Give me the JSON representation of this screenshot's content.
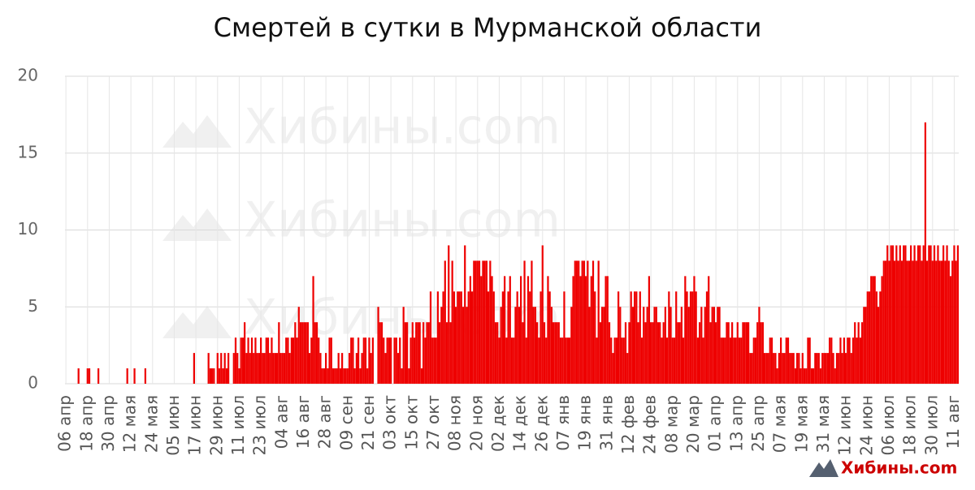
{
  "chart_data": {
    "type": "bar",
    "title": "Смертей в сутки в Мурманской области",
    "watermark": "Хибины.com",
    "color": "#ee0000",
    "grid": true,
    "ylim": [
      0,
      20
    ],
    "yticks": [
      0,
      5,
      10,
      15,
      20
    ],
    "categories": [
      "06 апр",
      null,
      null,
      null,
      null,
      null,
      null,
      null,
      null,
      null,
      null,
      null,
      "18 апр",
      null,
      null,
      null,
      null,
      null,
      null,
      null,
      null,
      null,
      null,
      null,
      "30 апр",
      null,
      null,
      null,
      null,
      null,
      null,
      null,
      null,
      null,
      null,
      null,
      "12 мая",
      null,
      null,
      null,
      null,
      null,
      null,
      null,
      null,
      null,
      null,
      null,
      "24 мая",
      null,
      null,
      null,
      null,
      null,
      null,
      null,
      null,
      null,
      null,
      null,
      "05 июн",
      null,
      null,
      null,
      null,
      null,
      null,
      null,
      null,
      null,
      null,
      null,
      "17 июн",
      null,
      null,
      null,
      null,
      null,
      null,
      null,
      null,
      null,
      null,
      null,
      "29 июн",
      null,
      null,
      null,
      null,
      null,
      null,
      null,
      null,
      null,
      null,
      null,
      "11 июл",
      null,
      null,
      null,
      null,
      null,
      null,
      null,
      null,
      null,
      null,
      null,
      "23 июл",
      null,
      null,
      null,
      null,
      null,
      null,
      null,
      null,
      null,
      null,
      null,
      "04 авг",
      null,
      null,
      null,
      null,
      null,
      null,
      null,
      null,
      null,
      null,
      null,
      "16 авг",
      null,
      null,
      null,
      null,
      null,
      null,
      null,
      null,
      null,
      null,
      null,
      "28 авг",
      null,
      null,
      null,
      null,
      null,
      null,
      null,
      null,
      null,
      null,
      null,
      "09 сен",
      null,
      null,
      null,
      null,
      null,
      null,
      null,
      null,
      null,
      null,
      null,
      "21 сен",
      null,
      null,
      null,
      null,
      null,
      null,
      null,
      null,
      null,
      null,
      null,
      "03 окт",
      null,
      null,
      null,
      null,
      null,
      null,
      null,
      null,
      null,
      null,
      null,
      "15 окт",
      null,
      null,
      null,
      null,
      null,
      null,
      null,
      null,
      null,
      null,
      null,
      "27 окт",
      null,
      null,
      null,
      null,
      null,
      null,
      null,
      null,
      null,
      null,
      null,
      "08 ноя",
      null,
      null,
      null,
      null,
      null,
      null,
      null,
      null,
      null,
      null,
      null,
      "20 ноя",
      null,
      null,
      null,
      null,
      null,
      null,
      null,
      null,
      null,
      null,
      null,
      "02 дек",
      null,
      null,
      null,
      null,
      null,
      null,
      null,
      null,
      null,
      null,
      null,
      "14 дек",
      null,
      null,
      null,
      null,
      null,
      null,
      null,
      null,
      null,
      null,
      null,
      "26 дек",
      null,
      null,
      null,
      null,
      null,
      null,
      null,
      null,
      null,
      null,
      null,
      "07 янв",
      null,
      null,
      null,
      null,
      null,
      null,
      null,
      null,
      null,
      null,
      null,
      "19 янв",
      null,
      null,
      null,
      null,
      null,
      null,
      null,
      null,
      null,
      null,
      null,
      "31 янв",
      null,
      null,
      null,
      null,
      null,
      null,
      null,
      null,
      null,
      null,
      null,
      "12 фев",
      null,
      null,
      null,
      null,
      null,
      null,
      null,
      null,
      null,
      null,
      null,
      "24 фев",
      null,
      null,
      null,
      null,
      null,
      null,
      null,
      null,
      null,
      null,
      null,
      "08 мар",
      null,
      null,
      null,
      null,
      null,
      null,
      null,
      null,
      null,
      null,
      null,
      "20 мар",
      null,
      null,
      null,
      null,
      null,
      null,
      null,
      null,
      null,
      null,
      null,
      "01 апр",
      null,
      null,
      null,
      null,
      null,
      null,
      null,
      null,
      null,
      null,
      null,
      "13 апр",
      null,
      null,
      null,
      null,
      null,
      null,
      null,
      null,
      null,
      null,
      null,
      "25 апр",
      null,
      null,
      null,
      null,
      null,
      null,
      null,
      null,
      null,
      null,
      null,
      "07 мая",
      null,
      null,
      null,
      null,
      null,
      null,
      null,
      null,
      null,
      null,
      null,
      "19 мая",
      null,
      null,
      null,
      null,
      null,
      null,
      null,
      null,
      null,
      null,
      null,
      "31 мая",
      null,
      null,
      null,
      null,
      null,
      null,
      null,
      null,
      null,
      null,
      null,
      "12 июн",
      null,
      null,
      null,
      null,
      null,
      null,
      null,
      null,
      null,
      null,
      null,
      "24 июн",
      null,
      null,
      null,
      null,
      null,
      null,
      null,
      null,
      null,
      null,
      null,
      "06 июл",
      null,
      null,
      null,
      null,
      null,
      null,
      null,
      null,
      null,
      null,
      null,
      "18 июл",
      null,
      null,
      null,
      null,
      null,
      null,
      null,
      null,
      null,
      null,
      null,
      "30 июл",
      null,
      null,
      null,
      null,
      null,
      null,
      null,
      null,
      null,
      null,
      null,
      "11 авг",
      null,
      null
    ],
    "values": [
      0,
      0,
      0,
      0,
      0,
      0,
      0,
      1,
      0,
      0,
      0,
      0,
      1,
      1,
      0,
      0,
      0,
      0,
      1,
      0,
      0,
      0,
      0,
      0,
      0,
      0,
      0,
      0,
      0,
      0,
      0,
      0,
      0,
      0,
      1,
      0,
      0,
      0,
      1,
      0,
      0,
      0,
      0,
      0,
      1,
      0,
      0,
      0,
      0,
      0,
      0,
      0,
      0,
      0,
      0,
      0,
      0,
      0,
      0,
      0,
      0,
      0,
      0,
      0,
      0,
      0,
      0,
      0,
      0,
      0,
      0,
      2,
      0,
      0,
      0,
      0,
      0,
      0,
      0,
      2,
      1,
      1,
      1,
      0,
      2,
      1,
      2,
      1,
      2,
      1,
      2,
      0,
      0,
      2,
      3,
      2,
      1,
      3,
      3,
      4,
      2,
      3,
      2,
      3,
      2,
      3,
      2,
      2,
      3,
      2,
      2,
      3,
      3,
      2,
      3,
      2,
      2,
      2,
      4,
      2,
      2,
      2,
      3,
      3,
      2,
      3,
      3,
      4,
      3,
      5,
      4,
      4,
      4,
      4,
      4,
      2,
      3,
      7,
      4,
      4,
      3,
      2,
      1,
      1,
      2,
      1,
      3,
      3,
      1,
      1,
      1,
      2,
      1,
      2,
      1,
      1,
      1,
      2,
      3,
      3,
      1,
      2,
      3,
      1,
      2,
      3,
      3,
      1,
      3,
      2,
      3,
      0,
      0,
      5,
      4,
      4,
      3,
      2,
      3,
      3,
      3,
      0,
      3,
      3,
      2,
      3,
      1,
      5,
      4,
      4,
      1,
      3,
      4,
      3,
      4,
      4,
      4,
      1,
      4,
      3,
      4,
      4,
      6,
      3,
      3,
      3,
      6,
      4,
      5,
      6,
      8,
      4,
      9,
      4,
      8,
      6,
      5,
      6,
      6,
      6,
      5,
      9,
      5,
      6,
      7,
      6,
      8,
      8,
      8,
      8,
      7,
      8,
      8,
      8,
      6,
      8,
      7,
      6,
      4,
      4,
      3,
      5,
      6,
      7,
      3,
      6,
      7,
      3,
      3,
      5,
      6,
      5,
      7,
      4,
      8,
      3,
      7,
      6,
      8,
      5,
      5,
      4,
      3,
      6,
      9,
      4,
      3,
      7,
      6,
      5,
      4,
      4,
      4,
      4,
      3,
      3,
      6,
      3,
      3,
      3,
      5,
      7,
      8,
      8,
      8,
      7,
      8,
      8,
      7,
      8,
      5,
      7,
      8,
      6,
      3,
      8,
      4,
      5,
      5,
      7,
      7,
      4,
      3,
      2,
      3,
      3,
      6,
      5,
      3,
      3,
      4,
      2,
      4,
      6,
      5,
      6,
      6,
      4,
      6,
      3,
      5,
      4,
      5,
      7,
      4,
      4,
      5,
      5,
      4,
      4,
      3,
      4,
      5,
      3,
      6,
      5,
      3,
      3,
      6,
      4,
      4,
      5,
      3,
      7,
      6,
      5,
      6,
      6,
      7,
      6,
      3,
      4,
      5,
      3,
      5,
      6,
      7,
      4,
      5,
      5,
      4,
      5,
      5,
      3,
      3,
      3,
      4,
      4,
      3,
      4,
      3,
      3,
      4,
      3,
      3,
      4,
      4,
      4,
      4,
      2,
      2,
      3,
      3,
      4,
      5,
      4,
      4,
      2,
      2,
      2,
      3,
      3,
      2,
      2,
      1,
      2,
      3,
      2,
      2,
      3,
      3,
      2,
      2,
      2,
      1,
      2,
      2,
      1,
      2,
      1,
      1,
      3,
      3,
      1,
      1,
      2,
      2,
      2,
      1,
      2,
      2,
      2,
      2,
      3,
      3,
      2,
      1,
      2,
      2,
      3,
      2,
      3,
      2,
      3,
      3,
      2,
      3,
      4,
      3,
      4,
      3,
      4,
      5,
      5,
      6,
      6,
      7,
      7,
      7,
      6,
      5,
      6,
      7,
      8,
      8,
      9,
      8,
      9,
      9,
      8,
      9,
      8,
      9,
      8,
      9,
      9,
      8,
      8,
      9,
      8,
      9,
      8,
      9,
      9,
      8,
      9,
      17,
      8,
      9,
      9,
      8,
      9,
      8,
      9,
      8,
      8,
      9,
      8,
      9,
      8,
      7,
      8,
      9,
      8,
      9
    ]
  }
}
